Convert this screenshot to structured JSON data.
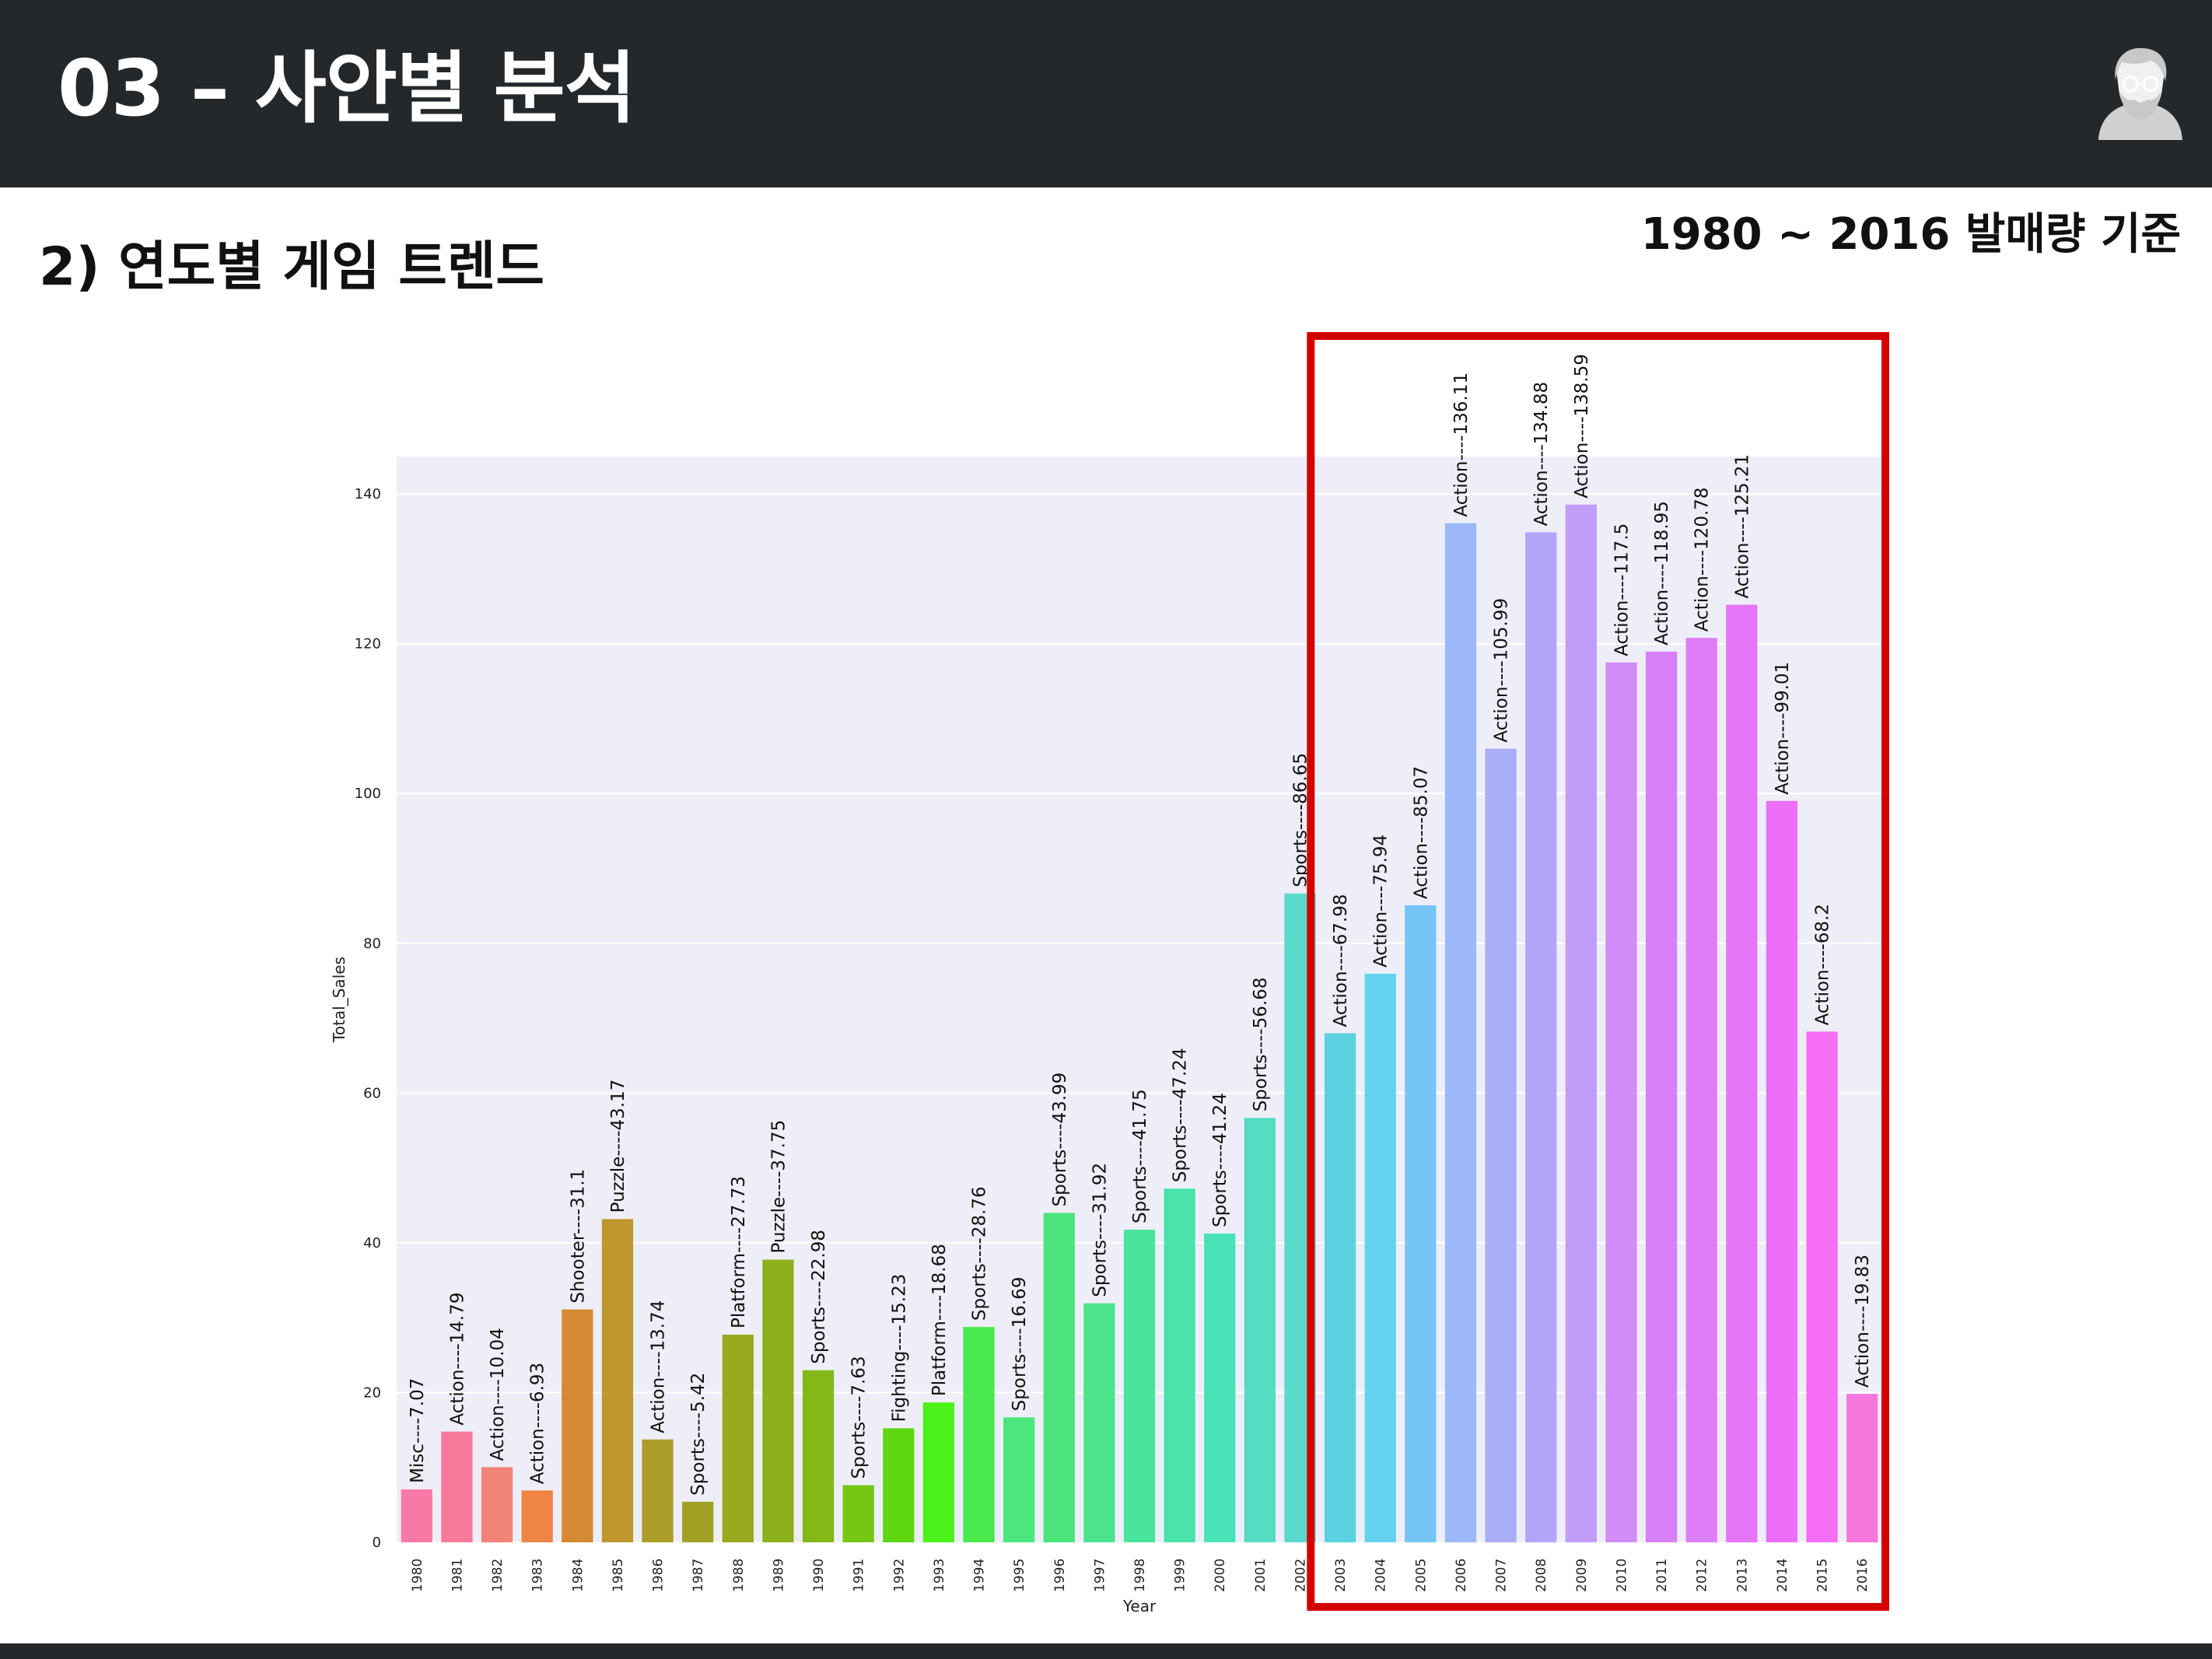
{
  "header": {
    "title": "03 – 사안별 분석",
    "avatar_icon": "hipster-avatar-icon"
  },
  "section": {
    "subtitle": "2) 연도별 게임 트렌드",
    "range_note": "1980 ~ 2016 발매량 기준"
  },
  "highlight": {
    "color": "#d40000",
    "from_year": "2003",
    "to_year": "2016"
  },
  "chart_data": {
    "type": "bar",
    "xlabel": "Year",
    "ylabel": "Total_Sales",
    "ylim": [
      0,
      145
    ],
    "yticks": [
      0,
      20,
      40,
      60,
      80,
      100,
      120,
      140
    ],
    "grid": true,
    "background": "#eeeef8",
    "categories": [
      "1980",
      "1981",
      "1982",
      "1983",
      "1984",
      "1985",
      "1986",
      "1987",
      "1988",
      "1989",
      "1990",
      "1991",
      "1992",
      "1993",
      "1994",
      "1995",
      "1996",
      "1997",
      "1998",
      "1999",
      "2000",
      "2001",
      "2002",
      "2003",
      "2004",
      "2005",
      "2006",
      "2007",
      "2008",
      "2009",
      "2010",
      "2011",
      "2012",
      "2013",
      "2014",
      "2015",
      "2016"
    ],
    "values": [
      7.07,
      14.79,
      10.04,
      6.93,
      31.1,
      43.17,
      13.74,
      5.42,
      27.73,
      37.75,
      22.98,
      7.63,
      15.23,
      18.68,
      28.76,
      16.69,
      43.99,
      31.92,
      41.75,
      47.24,
      41.24,
      56.68,
      86.65,
      67.98,
      75.94,
      85.07,
      136.11,
      105.99,
      134.88,
      138.59,
      117.5,
      118.95,
      120.78,
      125.21,
      99.01,
      68.2,
      19.83
    ],
    "labels": [
      "Misc----7.07",
      "Action----14.79",
      "Action----10.04",
      "Action----6.93",
      "Shooter----31.1",
      "Puzzle----43.17",
      "Action----13.74",
      "Sports----5.42",
      "Platform----27.73",
      "Puzzle----37.75",
      "Sports----22.98",
      "Sports----7.63",
      "Fighting----15.23",
      "Platform----18.68",
      "Sports----28.76",
      "Sports----16.69",
      "Sports----43.99",
      "Sports----31.92",
      "Sports----41.75",
      "Sports----47.24",
      "Sports----41.24",
      "Sports----56.68",
      "Sports----86.65",
      "Action----67.98",
      "Action----75.94",
      "Action----85.07",
      "Action----136.11",
      "Action----105.99",
      "Action----134.88",
      "Action----138.59",
      "Action----117.5",
      "Action----118.95",
      "Action----120.78",
      "Action----125.21",
      "Action----99.01",
      "Action----68.2",
      "Action----19.83"
    ],
    "colors": [
      "#f77aa6",
      "#f77a9a",
      "#f18377",
      "#ee8545",
      "#d48a33",
      "#c0972c",
      "#ab9d27",
      "#a2a024",
      "#98a81f",
      "#8cb11c",
      "#84b818",
      "#75c714",
      "#5ed710",
      "#4df21b",
      "#4ae94e",
      "#4be77d",
      "#4be47c",
      "#4be48c",
      "#4be49c",
      "#4ae3ab",
      "#4ae3b7",
      "#55dcc2",
      "#5ad9cd",
      "#5bd2e1",
      "#66d2f2",
      "#75c5f7",
      "#9db8f8",
      "#aaadf8",
      "#b4a5f8",
      "#c29df8",
      "#d08cf8",
      "#d780f8",
      "#de7df8",
      "#e576f8",
      "#ed6ef8",
      "#f66ef5",
      "#f777dd"
    ]
  }
}
